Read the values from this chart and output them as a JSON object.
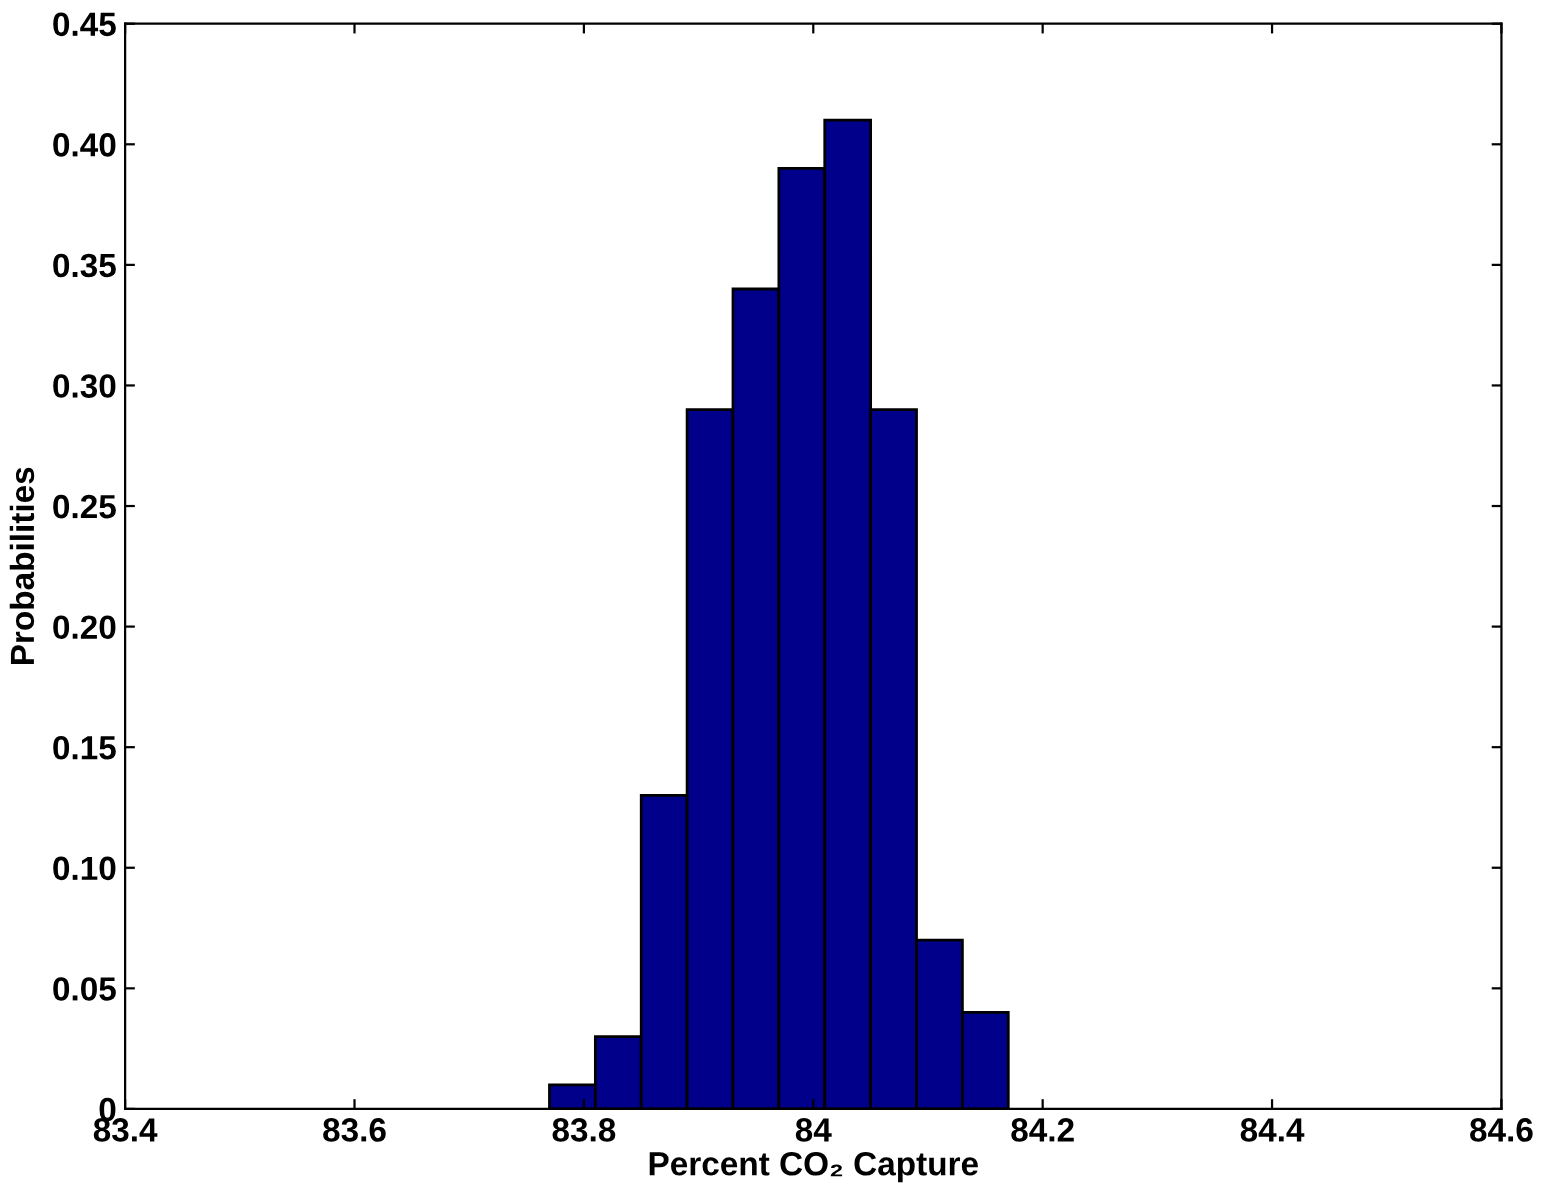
{
  "chart_data": {
    "type": "histogram",
    "xlabel": "Percent CO₂ Capture",
    "ylabel": "Probabilities",
    "bins": [
      83.77,
      83.81,
      83.85,
      83.89,
      83.93,
      83.97,
      84.01,
      84.05,
      84.09,
      84.13,
      84.17
    ],
    "values": [
      0.01,
      0.03,
      0.13,
      0.29,
      0.34,
      0.39,
      0.41,
      0.29,
      0.07,
      0.04
    ],
    "color": "#00008b",
    "xlim": [
      83.4,
      84.6
    ],
    "xticks": [
      83.4,
      83.6,
      83.8,
      84,
      84.2,
      84.4,
      84.6
    ],
    "ylim": [
      0,
      0.45
    ],
    "yticks": [
      {
        "value": 0,
        "label": "0"
      },
      {
        "value": 0.05,
        "label": "0.05"
      },
      {
        "value": 0.1,
        "label": "0.10"
      },
      {
        "value": 0.15,
        "label": "0.15"
      },
      {
        "value": 0.2,
        "label": "0.20"
      },
      {
        "value": 0.25,
        "label": "0.25"
      },
      {
        "value": 0.3,
        "label": "0.30"
      },
      {
        "value": 0.35,
        "label": "0.35"
      },
      {
        "value": 0.4,
        "label": "0.40"
      },
      {
        "value": 0.45,
        "label": "0.45"
      }
    ],
    "grid": false
  }
}
